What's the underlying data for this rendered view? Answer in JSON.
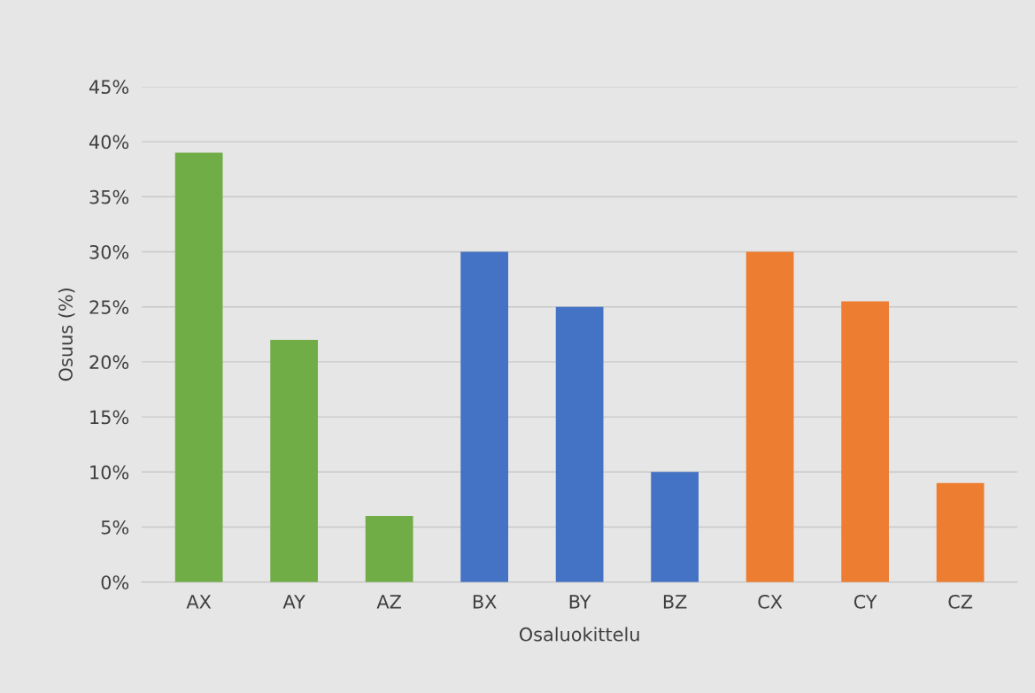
{
  "chart_data": {
    "type": "bar",
    "xlabel": "Osaluokittelu",
    "ylabel": "Osuus (%)",
    "categories": [
      "AX",
      "AY",
      "AZ",
      "BX",
      "BY",
      "BZ",
      "CX",
      "CY",
      "CZ"
    ],
    "values": [
      39,
      22,
      6,
      30,
      25,
      10,
      30,
      25.5,
      9
    ],
    "colors": [
      "#70ad47",
      "#70ad47",
      "#70ad47",
      "#4472c4",
      "#4472c4",
      "#4472c4",
      "#ed7d31",
      "#ed7d31",
      "#ed7d31"
    ],
    "ylim": [
      0,
      45
    ],
    "yticks": [
      {
        "value": 0,
        "label": "0%"
      },
      {
        "value": 5,
        "label": "5%"
      },
      {
        "value": 10,
        "label": "10%"
      },
      {
        "value": 15,
        "label": "15%"
      },
      {
        "value": 20,
        "label": "20%"
      },
      {
        "value": 25,
        "label": "25%"
      },
      {
        "value": 30,
        "label": "30%"
      },
      {
        "value": 35,
        "label": "35%"
      },
      {
        "value": 40,
        "label": "40%"
      },
      {
        "value": 45,
        "label": "45%"
      }
    ],
    "grid": "y"
  }
}
